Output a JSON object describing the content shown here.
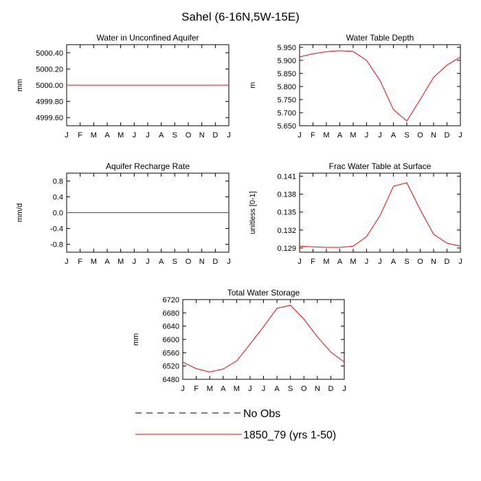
{
  "figure_title": "Sahel (6-16N,5W-15E)",
  "months": [
    "J",
    "F",
    "M",
    "A",
    "M",
    "J",
    "J",
    "A",
    "S",
    "O",
    "N",
    "D",
    "J"
  ],
  "series_color": "#ff0000",
  "chart_data": [
    {
      "type": "line",
      "title": "Water in Unconfined Aquifer",
      "ylabel": "mm",
      "ylim": [
        4999.5,
        5000.5
      ],
      "yticks": [
        4999.6,
        4999.8,
        5000.0,
        5000.2,
        5000.4
      ],
      "ytick_labels": [
        "4999.60",
        "4999.80",
        "5000.00",
        "5000.20",
        "5000.40"
      ],
      "categories": [
        "J",
        "F",
        "M",
        "A",
        "M",
        "J",
        "J",
        "A",
        "S",
        "O",
        "N",
        "D",
        "J"
      ],
      "series": [
        {
          "name": "1850_79 (yrs 1-50)",
          "values": [
            5000,
            5000,
            5000,
            5000,
            5000,
            5000,
            5000,
            5000,
            5000,
            5000,
            5000,
            5000,
            5000
          ]
        }
      ]
    },
    {
      "type": "line",
      "title": "Water Table Depth",
      "ylabel": "m",
      "ylim": [
        5.65,
        5.96
      ],
      "yticks": [
        5.65,
        5.7,
        5.75,
        5.8,
        5.85,
        5.9,
        5.95
      ],
      "ytick_labels": [
        "5.650",
        "5.700",
        "5.750",
        "5.800",
        "5.850",
        "5.900",
        "5.950"
      ],
      "categories": [
        "J",
        "F",
        "M",
        "A",
        "M",
        "J",
        "J",
        "A",
        "S",
        "O",
        "N",
        "D",
        "J"
      ],
      "series": [
        {
          "name": "1850_79 (yrs 1-50)",
          "values": [
            5.913,
            5.925,
            5.933,
            5.937,
            5.934,
            5.9,
            5.823,
            5.712,
            5.668,
            5.75,
            5.835,
            5.882,
            5.913
          ]
        }
      ]
    },
    {
      "type": "line",
      "title": "Aquifer Recharge Rate",
      "ylabel": "mm/d",
      "ylim": [
        -1.0,
        1.0
      ],
      "yticks": [
        -0.8,
        -0.4,
        0.0,
        0.4,
        0.8
      ],
      "ytick_labels": [
        "-0.8",
        "-0.4",
        "0.0",
        "0.4",
        "0.8"
      ],
      "categories": [
        "J",
        "F",
        "M",
        "A",
        "M",
        "J",
        "J",
        "A",
        "S",
        "O",
        "N",
        "D",
        "J"
      ],
      "series": [
        {
          "name": "1850_79 (yrs 1-50)",
          "values": [
            0,
            0,
            0,
            0,
            0,
            0,
            0,
            0,
            0,
            0,
            0,
            0,
            0
          ]
        }
      ]
    },
    {
      "type": "line",
      "title": "Frac Water Table at Surface",
      "ylabel": "unitless [0-1]",
      "ylim": [
        0.1283,
        0.1415
      ],
      "yticks": [
        0.129,
        0.132,
        0.135,
        0.138,
        0.141
      ],
      "ytick_labels": [
        "0.129",
        "0.132",
        "0.135",
        "0.138",
        "0.141"
      ],
      "categories": [
        "J",
        "F",
        "M",
        "A",
        "M",
        "J",
        "J",
        "A",
        "S",
        "O",
        "N",
        "D",
        "J"
      ],
      "series": [
        {
          "name": "1850_79 (yrs 1-50)",
          "values": [
            0.1293,
            0.1292,
            0.1291,
            0.1291,
            0.1293,
            0.1309,
            0.1344,
            0.1393,
            0.1399,
            0.1354,
            0.1313,
            0.1298,
            0.1293
          ]
        }
      ]
    },
    {
      "type": "line",
      "title": "Total Water Storage",
      "ylabel": "mm",
      "ylim": [
        6480,
        6720
      ],
      "yticks": [
        6480,
        6520,
        6560,
        6600,
        6640,
        6680,
        6720
      ],
      "ytick_labels": [
        "6480",
        "6520",
        "6560",
        "6600",
        "6640",
        "6680",
        "6720"
      ],
      "categories": [
        "J",
        "F",
        "M",
        "A",
        "M",
        "J",
        "J",
        "A",
        "S",
        "O",
        "N",
        "D",
        "J"
      ],
      "series": [
        {
          "name": "1850_79 (yrs 1-50)",
          "values": [
            6532,
            6512,
            6502,
            6511,
            6535,
            6586,
            6638,
            6694,
            6703,
            6661,
            6608,
            6562,
            6532
          ]
        }
      ]
    }
  ],
  "legend": [
    {
      "label": "No Obs",
      "style": "dashed",
      "color": "#000000"
    },
    {
      "label": "1850_79 (yrs 1-50)",
      "style": "solid",
      "color": "#ff0000"
    }
  ]
}
